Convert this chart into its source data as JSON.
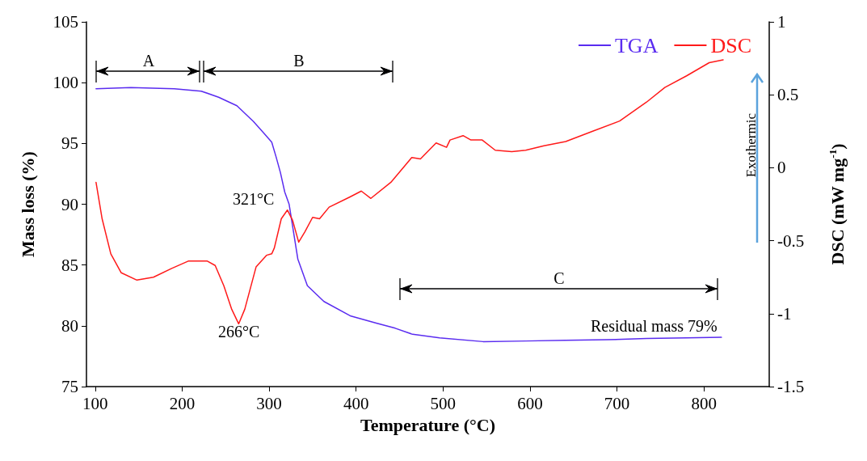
{
  "chart_data": {
    "type": "line",
    "xlabel": "Temperature (°C)",
    "ylabel": "Mass loss (%)",
    "y2label": "DSC (mW mg$^{-1}$)",
    "xlim": [
      90,
      875
    ],
    "xticks": [
      100,
      200,
      300,
      400,
      500,
      600,
      700,
      800
    ],
    "ylim": [
      75,
      105
    ],
    "yticks": [
      75,
      80,
      85,
      90,
      95,
      100,
      105
    ],
    "y2lim": [
      -1.5,
      1
    ],
    "y2ticks": [
      -1.5,
      -1,
      -0.5,
      0,
      0.5,
      1
    ],
    "grid": false,
    "legend": "top right",
    "marker": "none",
    "line_style": "solid",
    "series": [
      {
        "name": "TGA",
        "color": "#5a2cf0",
        "x": [
          101,
          141,
          191,
          222,
          242,
          263,
          282,
          292,
          303,
          308,
          313,
          318,
          323,
          329,
          333,
          344,
          363,
          394,
          424,
          445,
          465,
          496,
          546,
          595,
          641,
          688,
          734,
          780,
          820
        ],
        "values": [
          99.5,
          99.6,
          99.5,
          99.3,
          98.8,
          98.1,
          96.8,
          96.0,
          95.1,
          93.9,
          92.6,
          91.0,
          90.0,
          87.3,
          85.5,
          83.3,
          82.0,
          80.8,
          80.2,
          79.8,
          79.3,
          79.0,
          78.7,
          78.75,
          78.8,
          78.85,
          78.95,
          79.0,
          79.05
        ]
      },
      {
        "name": "DSC",
        "color": "#ff1a1a",
        "axis": "y2",
        "x": [
          101,
          108,
          118,
          130,
          148,
          167,
          188,
          207,
          229,
          238,
          248,
          257,
          265,
          272,
          285,
          297,
          303,
          306,
          314,
          321,
          327,
          334,
          341,
          350,
          358,
          369,
          393,
          406,
          417,
          440,
          464,
          474,
          492,
          504,
          508,
          523,
          532,
          545,
          560,
          579,
          595,
          616,
          641,
          672,
          703,
          734,
          755,
          780,
          806,
          822
        ],
        "values": [
          -0.1,
          -0.35,
          -0.59,
          -0.72,
          -0.77,
          -0.75,
          -0.69,
          -0.64,
          -0.64,
          -0.67,
          -0.81,
          -0.97,
          -1.07,
          -0.97,
          -0.68,
          -0.6,
          -0.59,
          -0.55,
          -0.35,
          -0.29,
          -0.36,
          -0.51,
          -0.44,
          -0.34,
          -0.35,
          -0.27,
          -0.2,
          -0.16,
          -0.21,
          -0.1,
          0.07,
          0.06,
          0.17,
          0.14,
          0.19,
          0.22,
          0.19,
          0.19,
          0.12,
          0.11,
          0.12,
          0.15,
          0.18,
          0.25,
          0.32,
          0.45,
          0.55,
          0.63,
          0.72,
          0.74
        ]
      }
    ],
    "annotations": [
      "321°C",
      "266°C",
      "Residual mass 79%",
      "Exothermic",
      "A",
      "B",
      "C"
    ]
  }
}
